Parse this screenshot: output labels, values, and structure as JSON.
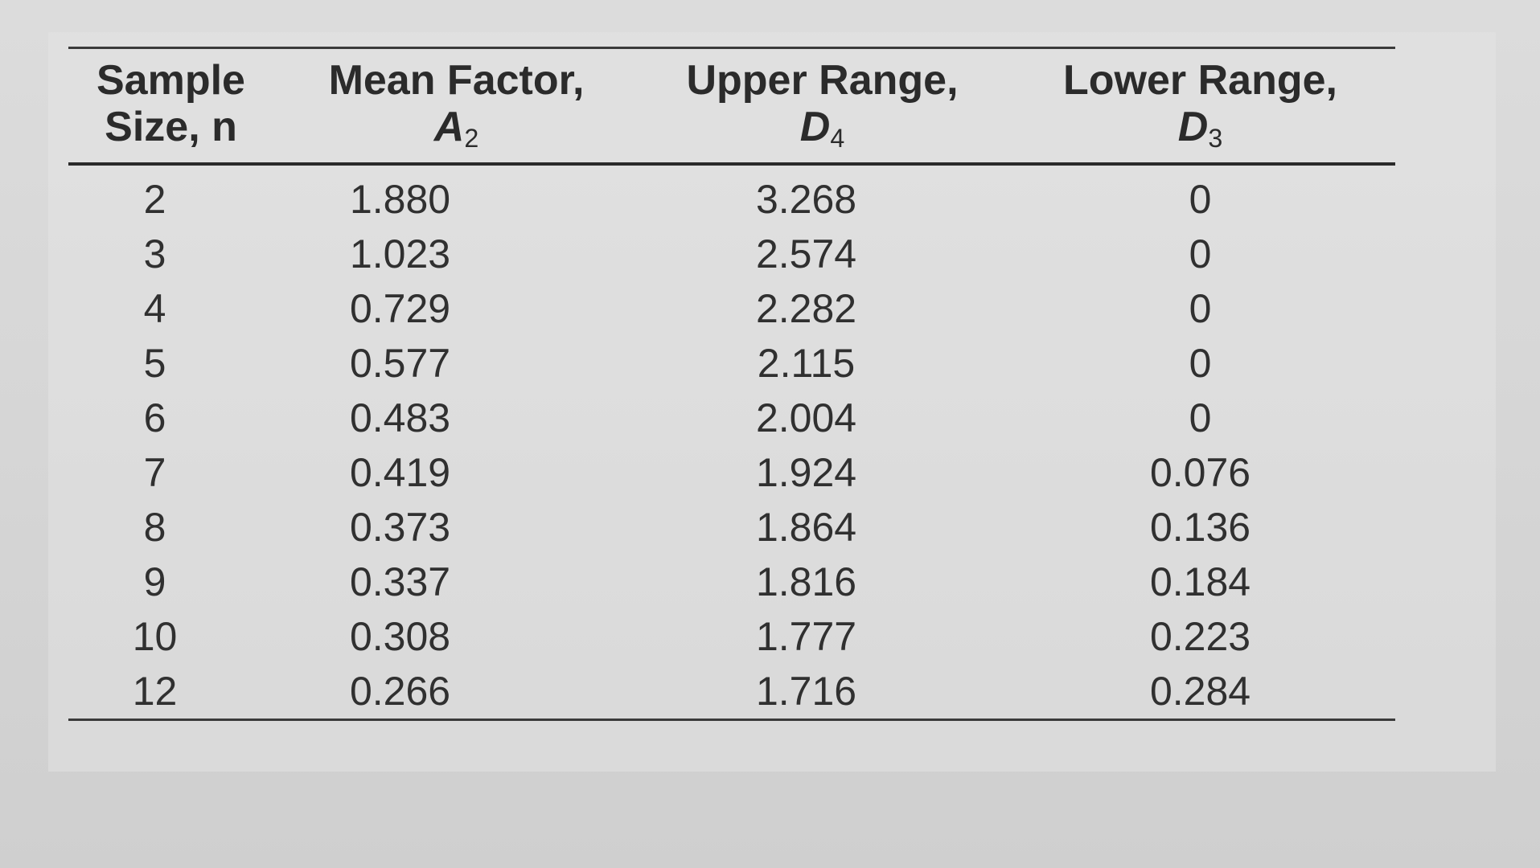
{
  "table": {
    "headers": {
      "n": {
        "line1": "Sample",
        "line2": "Size, n"
      },
      "a2": {
        "line1": "Mean Factor,",
        "symbol": "A",
        "sub": "2"
      },
      "d4": {
        "line1": "Upper Range,",
        "symbol": "D",
        "sub": "4"
      },
      "d3": {
        "line1": "Lower Range,",
        "symbol": "D",
        "sub": "3"
      }
    },
    "rows": [
      {
        "n": "2",
        "a2": "1.880",
        "d4": "3.268",
        "d3": "0"
      },
      {
        "n": "3",
        "a2": "1.023",
        "d4": "2.574",
        "d3": "0"
      },
      {
        "n": "4",
        "a2": "0.729",
        "d4": "2.282",
        "d3": "0"
      },
      {
        "n": "5",
        "a2": "0.577",
        "d4": "2.115",
        "d3": "0"
      },
      {
        "n": "6",
        "a2": "0.483",
        "d4": "2.004",
        "d3": "0"
      },
      {
        "n": "7",
        "a2": "0.419",
        "d4": "1.924",
        "d3": "0.076"
      },
      {
        "n": "8",
        "a2": "0.373",
        "d4": "1.864",
        "d3": "0.136"
      },
      {
        "n": "9",
        "a2": "0.337",
        "d4": "1.816",
        "d3": "0.184"
      },
      {
        "n": "10",
        "a2": "0.308",
        "d4": "1.777",
        "d3": "0.223"
      },
      {
        "n": "12",
        "a2": "0.266",
        "d4": "1.716",
        "d3": "0.284"
      }
    ]
  }
}
